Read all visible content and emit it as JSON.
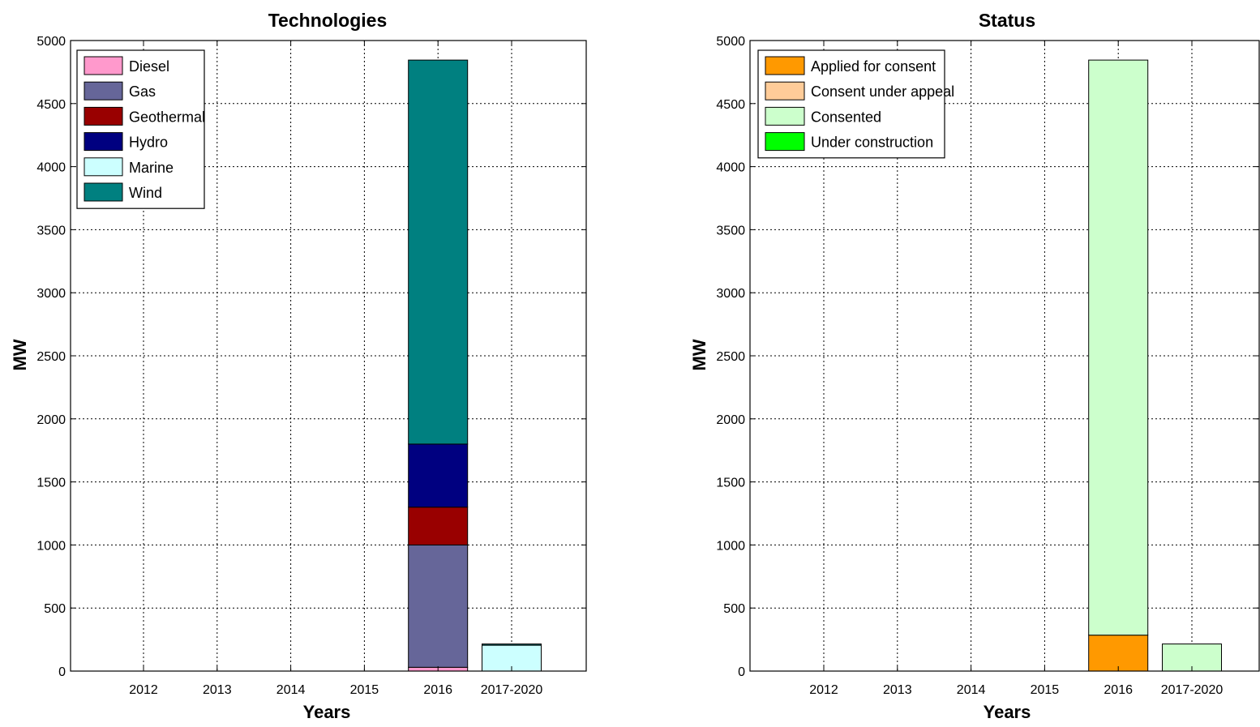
{
  "chart_data": [
    {
      "type": "bar",
      "stacked": true,
      "title": "Technologies",
      "xlabel": "Years",
      "ylabel": "MW",
      "categories": [
        "2012",
        "2013",
        "2014",
        "2015",
        "2016",
        "2017-2020"
      ],
      "ylim": [
        0,
        5000
      ],
      "yticks": [
        0,
        500,
        1000,
        1500,
        2000,
        2500,
        3000,
        3500,
        4000,
        4500,
        5000
      ],
      "grid": true,
      "legend_position": "top-left",
      "series": [
        {
          "name": "Diesel",
          "color": "#ff99cc",
          "values": [
            0,
            0,
            0,
            0,
            30,
            0
          ]
        },
        {
          "name": "Gas",
          "color": "#666699",
          "values": [
            0,
            0,
            0,
            0,
            970,
            0
          ]
        },
        {
          "name": "Geothermal",
          "color": "#990000",
          "values": [
            0,
            0,
            0,
            0,
            300,
            0
          ]
        },
        {
          "name": "Hydro",
          "color": "#000080",
          "values": [
            0,
            0,
            0,
            0,
            500,
            0
          ]
        },
        {
          "name": "Marine",
          "color": "#ccffff",
          "values": [
            0,
            0,
            0,
            0,
            0,
            205
          ]
        },
        {
          "name": "Wind",
          "color": "#008080",
          "values": [
            0,
            0,
            0,
            0,
            3045,
            10
          ]
        }
      ]
    },
    {
      "type": "bar",
      "stacked": true,
      "title": "Status",
      "xlabel": "Years",
      "ylabel": "MW",
      "categories": [
        "2012",
        "2013",
        "2014",
        "2015",
        "2016",
        "2017-2020"
      ],
      "ylim": [
        0,
        5000
      ],
      "yticks": [
        0,
        500,
        1000,
        1500,
        2000,
        2500,
        3000,
        3500,
        4000,
        4500,
        5000
      ],
      "grid": true,
      "legend_position": "top-left",
      "series": [
        {
          "name": "Applied for consent",
          "color": "#ff9900",
          "values": [
            0,
            0,
            0,
            0,
            285,
            0
          ]
        },
        {
          "name": "Consent under appeal",
          "color": "#ffcc99",
          "values": [
            0,
            0,
            0,
            0,
            0,
            0
          ]
        },
        {
          "name": "Consented",
          "color": "#ccffcc",
          "values": [
            0,
            0,
            0,
            0,
            4560,
            215
          ]
        },
        {
          "name": "Under construction",
          "color": "#00ff00",
          "values": [
            0,
            0,
            0,
            0,
            0,
            0
          ]
        }
      ]
    }
  ]
}
